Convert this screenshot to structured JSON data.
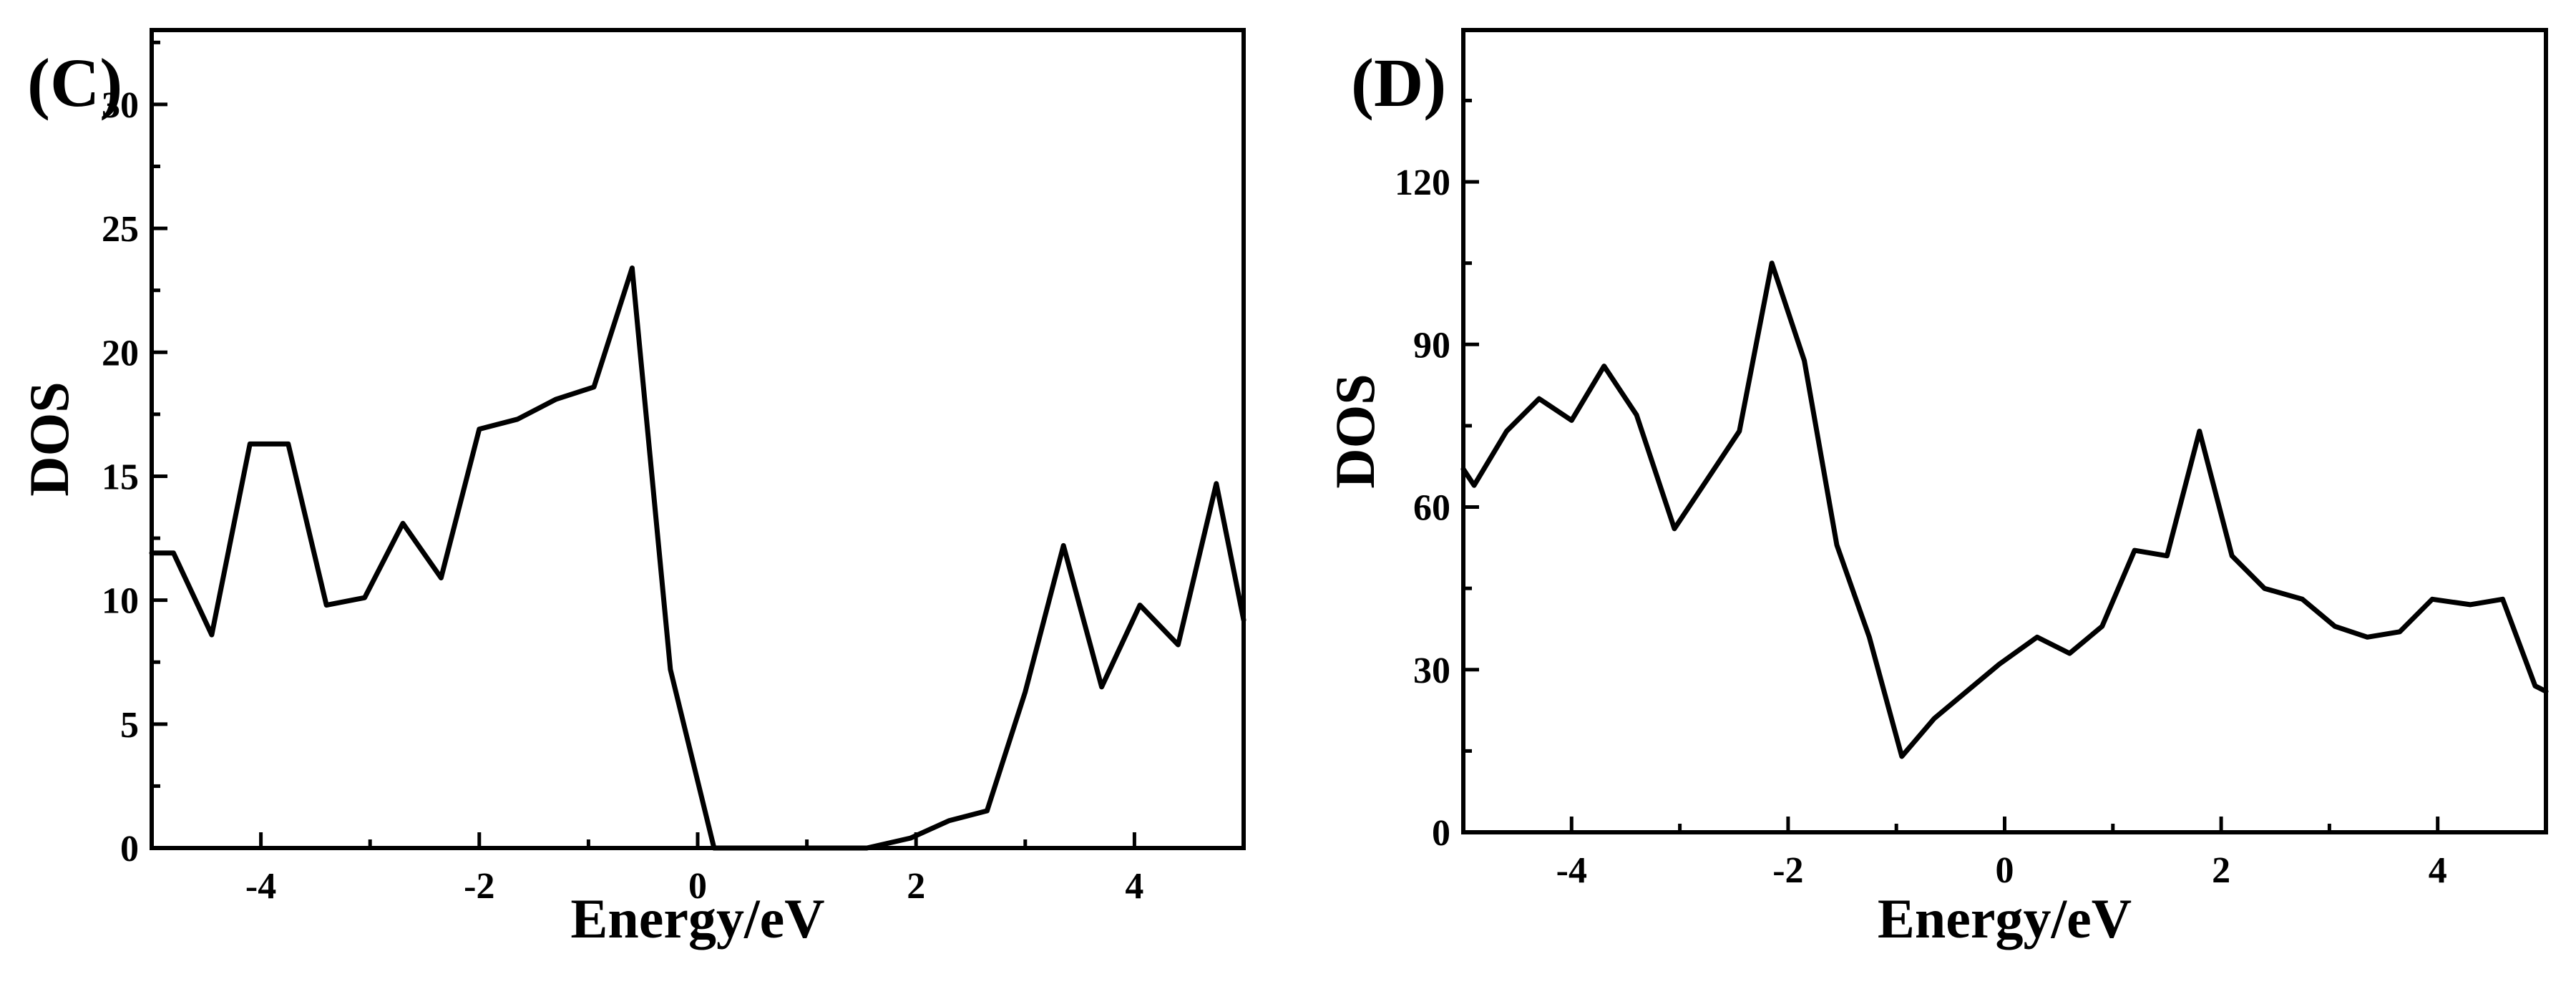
{
  "chart_data": [
    {
      "panel_label": "(C)",
      "type": "line",
      "xlabel": "Energy/eV",
      "ylabel": "DOS",
      "xlim": [
        -5,
        5
      ],
      "ylim": [
        0,
        33
      ],
      "x_ticks": [
        -4,
        -2,
        0,
        2,
        4
      ],
      "x_tick_labels": [
        "-4",
        "-2",
        "0",
        "2",
        "4"
      ],
      "y_ticks": [
        0,
        5,
        10,
        15,
        20,
        25,
        30
      ],
      "y_tick_labels": [
        "0",
        "5",
        "10",
        "15",
        "20",
        "25",
        "30"
      ],
      "grid": false,
      "series": [
        {
          "color": "#000000",
          "x": [
            -5.0,
            -4.8,
            -4.45,
            -4.1,
            -3.75,
            -3.4,
            -3.05,
            -2.7,
            -2.35,
            -2.0,
            -1.65,
            -1.3,
            -0.95,
            -0.6,
            -0.25,
            0.15,
            0.5,
            0.85,
            1.2,
            1.55,
            1.95,
            2.3,
            2.65,
            3.0,
            3.35,
            3.7,
            4.05,
            4.4,
            4.75,
            5.0
          ],
          "y": [
            11.9,
            11.9,
            8.6,
            16.3,
            16.3,
            9.8,
            10.1,
            13.1,
            10.9,
            16.9,
            17.3,
            18.1,
            18.6,
            23.4,
            7.2,
            0.0,
            0.0,
            0.0,
            0.0,
            0.0,
            0.4,
            1.1,
            1.5,
            6.3,
            12.2,
            6.5,
            9.8,
            8.2,
            14.7,
            9.2
          ]
        }
      ]
    },
    {
      "panel_label": "(D)",
      "type": "line",
      "xlabel": "Energy/eV",
      "ylabel": "DOS",
      "xlim": [
        -5,
        5
      ],
      "ylim": [
        0,
        148
      ],
      "x_ticks": [
        -4,
        -2,
        0,
        2,
        4
      ],
      "x_tick_labels": [
        "-4",
        "-2",
        "0",
        "2",
        "4"
      ],
      "y_ticks": [
        0,
        30,
        60,
        90,
        120
      ],
      "y_tick_labels": [
        "0",
        "30",
        "60",
        "90",
        "120"
      ],
      "grid": false,
      "series": [
        {
          "color": "#000000",
          "x": [
            -5.0,
            -4.9,
            -4.6,
            -4.3,
            -4.0,
            -3.7,
            -3.4,
            -3.05,
            -2.75,
            -2.45,
            -2.15,
            -1.85,
            -1.55,
            -1.25,
            -0.95,
            -0.65,
            -0.35,
            -0.05,
            0.3,
            0.6,
            0.9,
            1.2,
            1.5,
            1.8,
            2.1,
            2.4,
            2.75,
            3.05,
            3.35,
            3.65,
            3.95,
            4.3,
            4.6,
            4.9,
            5.0
          ],
          "y": [
            67,
            64,
            74,
            80,
            76,
            86,
            77,
            56,
            65,
            74,
            105,
            87,
            53,
            36,
            14,
            21,
            26,
            31,
            36,
            33,
            38,
            52,
            51,
            74,
            51,
            45,
            43,
            38,
            36,
            37,
            43,
            42,
            43,
            27,
            26
          ]
        }
      ]
    }
  ]
}
